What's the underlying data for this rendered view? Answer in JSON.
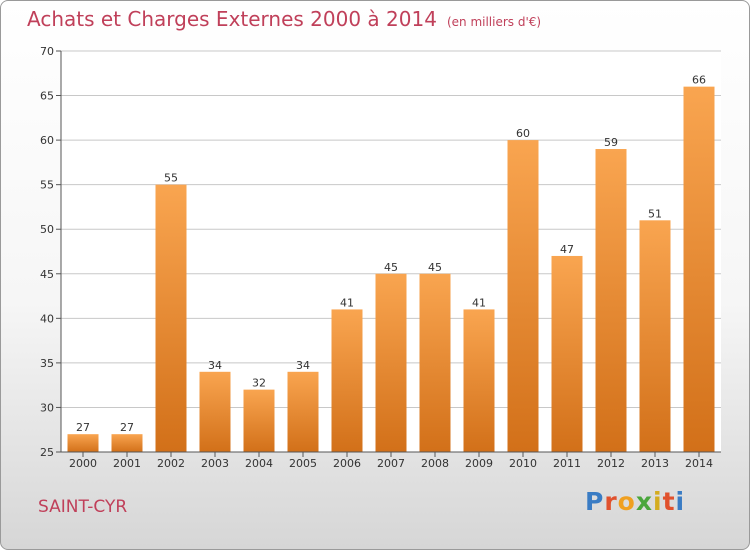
{
  "header": {
    "title": "Achats et Charges Externes 2000 à 2014",
    "subtitle": "(en milliers d'€)"
  },
  "footer": {
    "commune": "SAINT-CYR",
    "logo_text": "Proxiti"
  },
  "colors": {
    "bar_top": "#f9a550",
    "bar_bottom": "#d27019",
    "title": "#c0405a",
    "grid": "#c8c8c8"
  },
  "chart_data": {
    "type": "bar",
    "title": "Achats et Charges Externes 2000 à 2014",
    "subtitle": "(en milliers d'€)",
    "xlabel": "",
    "ylabel": "",
    "categories": [
      "2000",
      "2001",
      "2002",
      "2003",
      "2004",
      "2005",
      "2006",
      "2007",
      "2008",
      "2009",
      "2010",
      "2011",
      "2012",
      "2013",
      "2014"
    ],
    "values": [
      27,
      27,
      55,
      34,
      32,
      34,
      41,
      45,
      45,
      41,
      60,
      47,
      59,
      51,
      66
    ],
    "ylim": [
      25,
      70
    ],
    "yticks": [
      25,
      30,
      35,
      40,
      45,
      50,
      55,
      60,
      65,
      70
    ],
    "grid": true,
    "legend": "none"
  }
}
